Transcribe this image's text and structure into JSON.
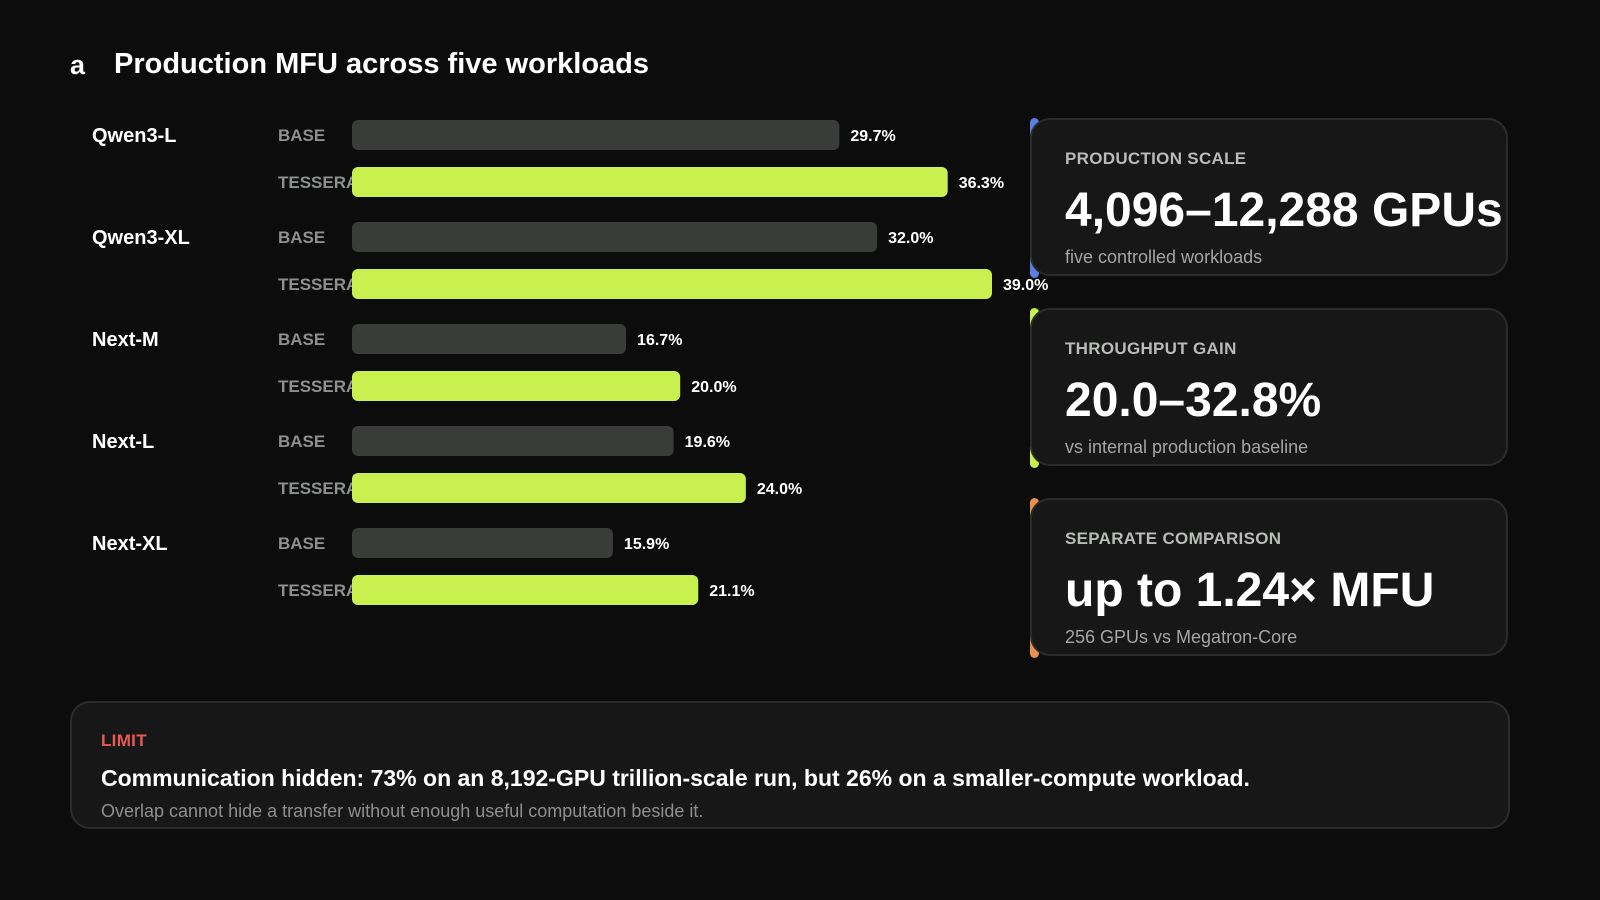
{
  "panel_letter": "a",
  "title": "Production MFU across five workloads",
  "colors": {
    "background": "#0c0c0d",
    "base_bar": "#3a3c3a",
    "tessera_bar": "#c8f150",
    "scale_accent": "#5b7fe0",
    "gain_accent": "#c8f150",
    "compare_accent": "#e8924e",
    "limit_label": "#e85a55"
  },
  "chart_data": {
    "type": "bar",
    "orientation": "horizontal",
    "title": "Production MFU across five workloads",
    "categories": [
      "Qwen3-L",
      "Qwen3-XL",
      "Next-M",
      "Next-L",
      "Next-XL"
    ],
    "series": [
      {
        "name": "BASE",
        "values": [
          29.7,
          32.0,
          16.7,
          19.6,
          15.9
        ],
        "labels": [
          "29.7%",
          "32.0%",
          "16.7%",
          "19.6%",
          "15.9%"
        ]
      },
      {
        "name": "TESSERA",
        "values": [
          36.3,
          39.0,
          20.0,
          24.0,
          21.1
        ],
        "labels": [
          "36.3%",
          "39.0%",
          "20.0%",
          "24.0%",
          "21.1%"
        ]
      }
    ],
    "unit": "%",
    "xlim": [
      0,
      39.0
    ],
    "grid": false
  },
  "cards": [
    {
      "label": "PRODUCTION SCALE",
      "value": "4,096–12,288 GPUs",
      "sub": "five controlled workloads"
    },
    {
      "label": "THROUGHPUT GAIN",
      "value": "20.0–32.8%",
      "sub": "vs internal production baseline"
    },
    {
      "label": "SEPARATE COMPARISON",
      "value": "up to 1.24× MFU",
      "sub": "256 GPUs vs Megatron-Core"
    }
  ],
  "limit": {
    "label": "LIMIT",
    "headline": "Communication hidden: 73% on an 8,192-GPU trillion-scale run, but 26% on a smaller-compute workload.",
    "detail": "Overlap cannot hide a transfer without enough useful computation beside it."
  }
}
